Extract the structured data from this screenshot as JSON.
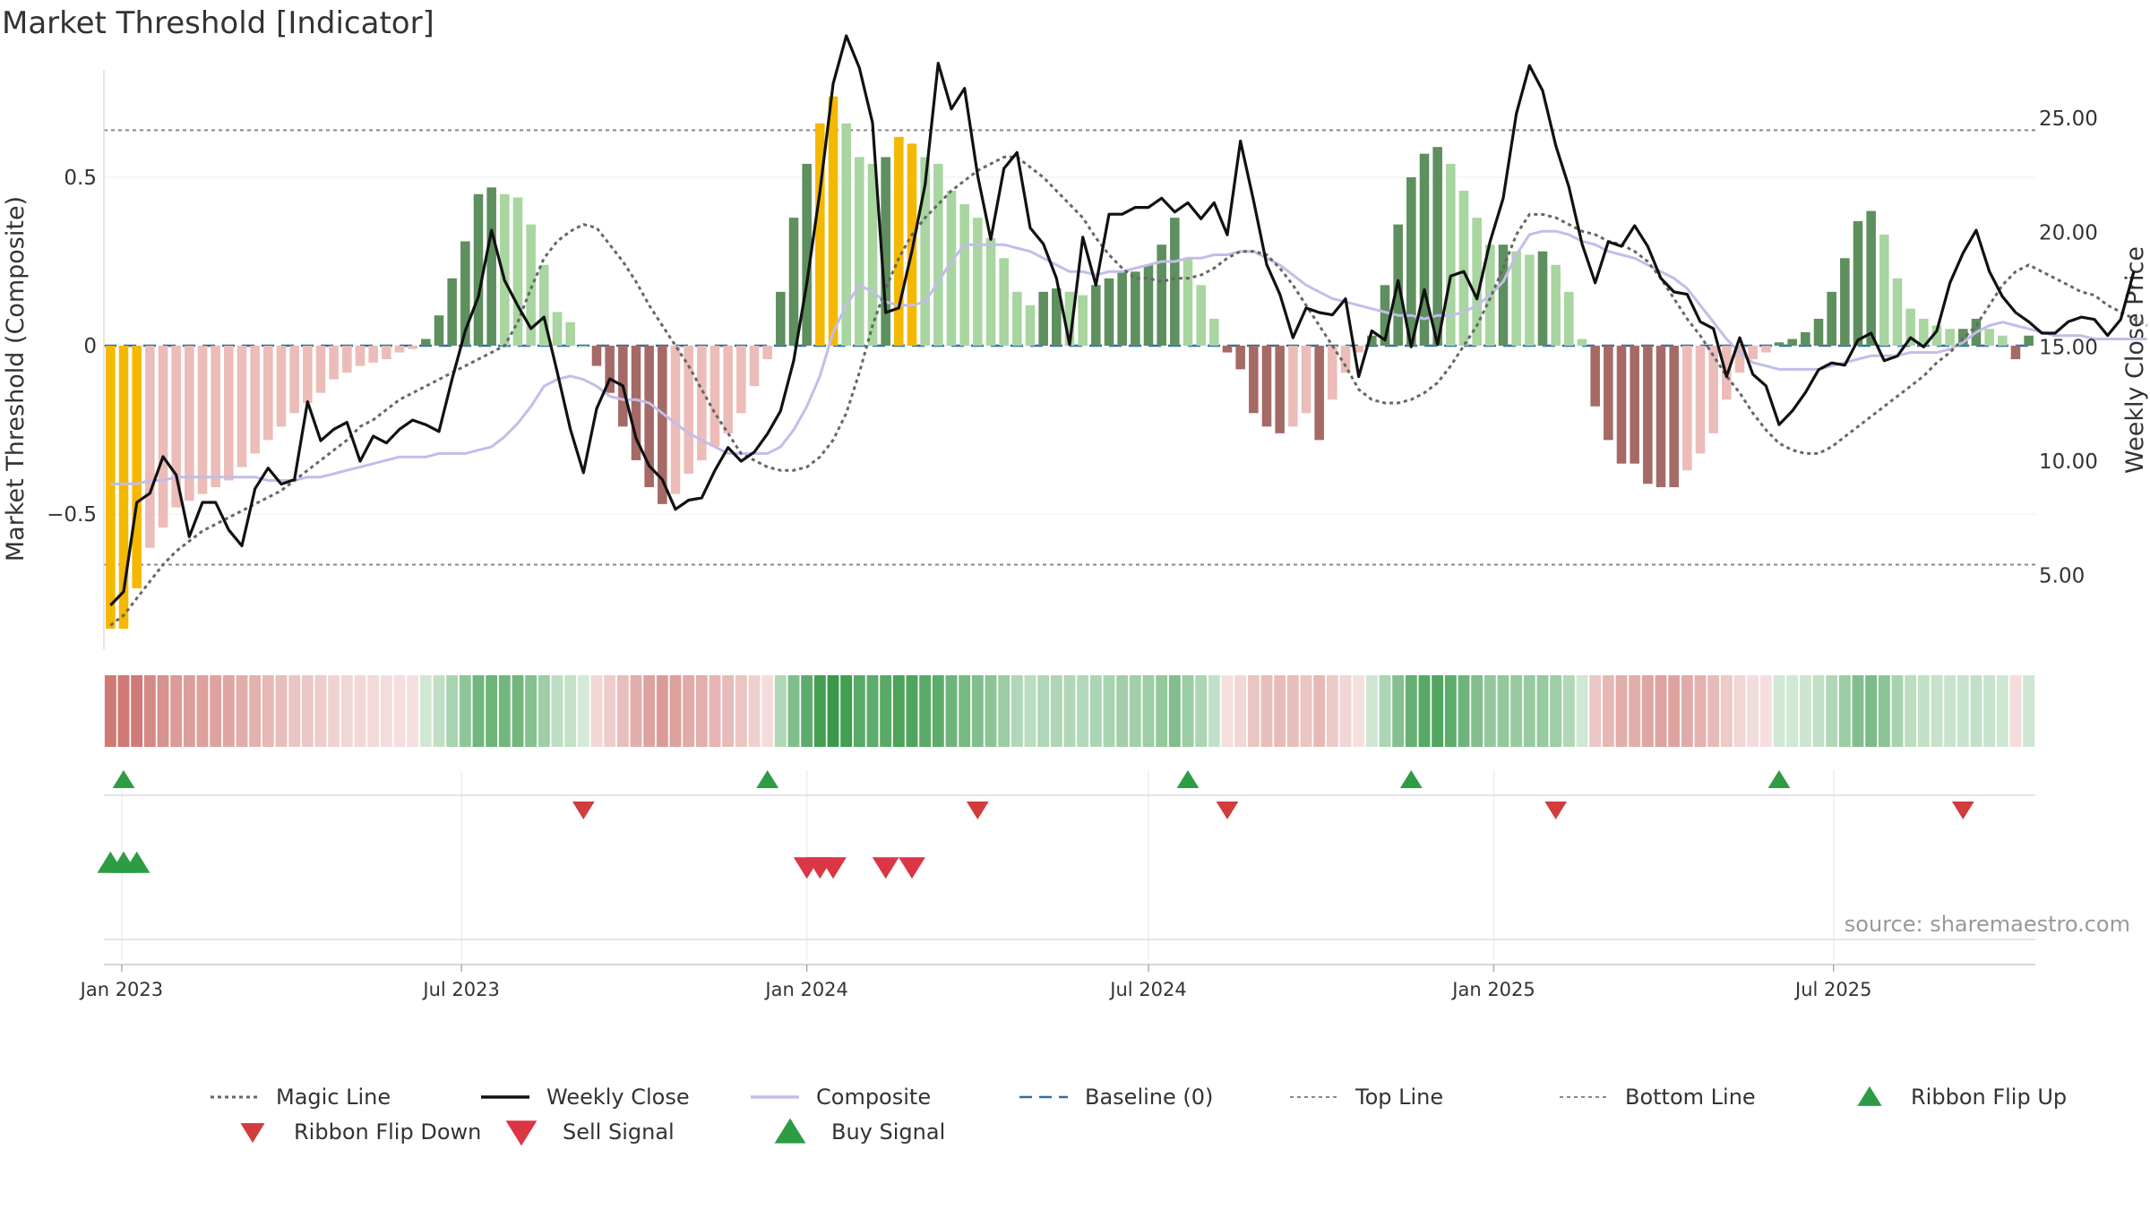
{
  "title": "Market Threshold [Indicator]",
  "source": "source: sharemaestro.com",
  "colors": {
    "bar_green_dark": "#5e8f5e",
    "bar_green_light": "#a8d5a0",
    "bar_red_dark": "#a56a66",
    "bar_red_light": "#ebbcb8",
    "bar_gold": "#f5b800",
    "close": "#111111",
    "composite": "#c2bde8",
    "magic": "#666666",
    "baseline": "#2f6f9f",
    "ref_line": "#888888",
    "signal_up": "#2e9b45",
    "signal_down": "#d13c3c",
    "sell": "#dc3545"
  },
  "chart_data": {
    "type": "bar",
    "ylabel": "Market Threshold (Composite)",
    "y2label": "Weekly Close Price",
    "ylim": [
      -0.84,
      0.92
    ],
    "y2lim": [
      2.68,
      28.6
    ],
    "yticks": [
      0.5,
      0,
      -0.5
    ],
    "yticklabels": [
      "0.5",
      "0",
      "−0.5"
    ],
    "y2ticks": [
      25,
      20,
      15,
      10,
      5
    ],
    "y2ticklabels": [
      "25.00",
      "20.00",
      "15.00",
      "10.00",
      "5.00"
    ],
    "x_start": "2022-12-26",
    "xticks": [
      "2023-01-01",
      "2023-07-01",
      "2024-01-01",
      "2024-07-01",
      "2025-01-01",
      "2025-07-01"
    ],
    "xticklabels": [
      "Jan 2023",
      "Jul 2023",
      "Jan 2024",
      "Jul 2024",
      "Jan 2025",
      "Jul 2025"
    ],
    "top_line": 0.64,
    "bottom_line": -0.65,
    "baseline": 0,
    "composite_bars": [
      -0.84,
      -0.84,
      -0.72,
      -0.6,
      -0.54,
      -0.48,
      -0.46,
      -0.44,
      -0.42,
      -0.4,
      -0.36,
      -0.32,
      -0.28,
      -0.24,
      -0.2,
      -0.17,
      -0.14,
      -0.1,
      -0.08,
      -0.06,
      -0.05,
      -0.04,
      -0.02,
      -0.01,
      0.02,
      0.09,
      0.2,
      0.31,
      0.45,
      0.47,
      0.45,
      0.44,
      0.36,
      0.24,
      0.1,
      0.07,
      0.0,
      -0.06,
      -0.14,
      -0.24,
      -0.34,
      -0.42,
      -0.47,
      -0.44,
      -0.38,
      -0.34,
      -0.3,
      -0.26,
      -0.2,
      -0.12,
      -0.04,
      0.16,
      0.38,
      0.54,
      0.66,
      0.74,
      0.66,
      0.56,
      0.54,
      0.56,
      0.62,
      0.6,
      0.56,
      0.54,
      0.46,
      0.42,
      0.38,
      0.32,
      0.26,
      0.16,
      0.12,
      0.16,
      0.17,
      0.16,
      0.15,
      0.18,
      0.2,
      0.22,
      0.22,
      0.24,
      0.3,
      0.38,
      0.26,
      0.18,
      0.08,
      -0.02,
      -0.07,
      -0.2,
      -0.24,
      -0.26,
      -0.24,
      -0.2,
      -0.28,
      -0.16,
      -0.08,
      -0.02,
      0.03,
      0.18,
      0.36,
      0.5,
      0.57,
      0.59,
      0.54,
      0.46,
      0.38,
      0.3,
      0.3,
      0.28,
      0.27,
      0.28,
      0.24,
      0.16,
      0.02,
      -0.18,
      -0.28,
      -0.35,
      -0.35,
      -0.41,
      -0.42,
      -0.42,
      -0.37,
      -0.32,
      -0.26,
      -0.16,
      -0.08,
      -0.04,
      -0.02,
      0.01,
      0.02,
      0.04,
      0.08,
      0.16,
      0.26,
      0.37,
      0.4,
      0.33,
      0.2,
      0.11,
      0.08,
      0.06,
      0.05,
      0.05,
      0.08,
      0.05,
      0.03,
      -0.04,
      0.03
    ],
    "weekly_close": [
      3.7,
      4.3,
      8.2,
      8.6,
      10.2,
      9.4,
      6.7,
      8.2,
      8.2,
      7.0,
      6.3,
      8.8,
      9.7,
      9.0,
      9.2,
      12.6,
      10.9,
      11.4,
      11.7,
      10.0,
      11.1,
      10.8,
      11.4,
      11.8,
      11.6,
      11.3,
      13.6,
      15.7,
      17.2,
      20.1,
      17.9,
      16.8,
      15.8,
      16.3,
      13.9,
      11.4,
      9.5,
      12.3,
      13.6,
      13.3,
      11.0,
      9.8,
      9.2,
      7.9,
      8.3,
      8.4,
      9.6,
      10.6,
      10.0,
      10.4,
      11.2,
      12.2,
      14.4,
      17.8,
      21.8,
      26.5,
      28.6,
      27.2,
      24.8,
      16.5,
      16.7,
      19.2,
      22.1,
      27.4,
      25.4,
      26.3,
      22.5,
      19.7,
      22.8,
      23.5,
      20.2,
      19.5,
      18.0,
      15.1,
      19.8,
      17.7,
      20.8,
      20.8,
      21.1,
      21.1,
      21.5,
      20.9,
      21.3,
      20.6,
      21.3,
      19.9,
      24.0,
      21.4,
      18.6,
      17.3,
      15.4,
      16.7,
      16.5,
      16.4,
      17.1,
      13.7,
      15.7,
      15.3,
      17.9,
      15.0,
      17.5,
      15.1,
      18.1,
      18.3,
      17.1,
      19.6,
      21.5,
      25.2,
      27.3,
      26.2,
      23.8,
      22.0,
      19.5,
      17.8,
      19.6,
      19.4,
      20.3,
      19.4,
      18.0,
      17.4,
      17.3,
      16.1,
      15.8,
      13.7,
      15.4,
      13.8,
      13.3,
      11.6,
      12.2,
      13.0,
      14.0,
      14.3,
      14.2,
      15.3,
      15.6,
      14.4,
      14.6,
      15.4,
      15.0,
      15.7,
      17.8,
      19.1,
      20.1,
      18.3,
      17.2,
      16.5,
      16.1,
      15.6,
      15.6,
      16.1,
      16.3,
      16.2,
      15.5,
      16.2,
      18.3
    ],
    "composite_line": [
      -0.41,
      -0.41,
      -0.41,
      -0.4,
      -0.4,
      -0.39,
      -0.39,
      -0.39,
      -0.39,
      -0.39,
      -0.39,
      -0.39,
      -0.4,
      -0.4,
      -0.4,
      -0.39,
      -0.39,
      -0.38,
      -0.37,
      -0.36,
      -0.35,
      -0.34,
      -0.33,
      -0.33,
      -0.33,
      -0.32,
      -0.32,
      -0.32,
      -0.31,
      -0.3,
      -0.27,
      -0.23,
      -0.18,
      -0.12,
      -0.1,
      -0.09,
      -0.1,
      -0.12,
      -0.15,
      -0.16,
      -0.16,
      -0.17,
      -0.2,
      -0.23,
      -0.26,
      -0.28,
      -0.3,
      -0.32,
      -0.32,
      -0.32,
      -0.32,
      -0.3,
      -0.25,
      -0.18,
      -0.09,
      0.04,
      0.12,
      0.18,
      0.16,
      0.13,
      0.12,
      0.12,
      0.13,
      0.19,
      0.25,
      0.3,
      0.3,
      0.3,
      0.3,
      0.29,
      0.28,
      0.26,
      0.24,
      0.22,
      0.22,
      0.21,
      0.22,
      0.22,
      0.23,
      0.24,
      0.25,
      0.25,
      0.26,
      0.26,
      0.27,
      0.27,
      0.28,
      0.28,
      0.26,
      0.24,
      0.21,
      0.18,
      0.16,
      0.14,
      0.13,
      0.12,
      0.11,
      0.1,
      0.09,
      0.09,
      0.08,
      0.09,
      0.09,
      0.1,
      0.12,
      0.15,
      0.19,
      0.27,
      0.33,
      0.34,
      0.34,
      0.33,
      0.31,
      0.3,
      0.28,
      0.27,
      0.26,
      0.24,
      0.22,
      0.2,
      0.17,
      0.12,
      0.07,
      0.02,
      -0.02,
      -0.05,
      -0.06,
      -0.07,
      -0.07,
      -0.07,
      -0.07,
      -0.06,
      -0.05,
      -0.04,
      -0.03,
      -0.03,
      -0.03,
      -0.02,
      -0.02,
      -0.02,
      -0.01,
      0.01,
      0.04,
      0.06,
      0.07,
      0.06,
      0.05,
      0.04,
      0.03,
      0.03,
      0.03,
      0.02,
      0.02,
      0.02,
      0.02,
      0.02
    ],
    "magic_line": [
      -0.83,
      -0.8,
      -0.75,
      -0.7,
      -0.65,
      -0.61,
      -0.58,
      -0.55,
      -0.53,
      -0.51,
      -0.49,
      -0.47,
      -0.45,
      -0.43,
      -0.4,
      -0.37,
      -0.34,
      -0.31,
      -0.28,
      -0.24,
      -0.22,
      -0.19,
      -0.16,
      -0.14,
      -0.12,
      -0.1,
      -0.08,
      -0.06,
      -0.04,
      -0.02,
      0.0,
      0.07,
      0.17,
      0.26,
      0.31,
      0.34,
      0.36,
      0.35,
      0.3,
      0.25,
      0.19,
      0.12,
      0.06,
      0.0,
      -0.06,
      -0.13,
      -0.2,
      -0.26,
      -0.32,
      -0.34,
      -0.36,
      -0.37,
      -0.37,
      -0.36,
      -0.33,
      -0.28,
      -0.2,
      -0.08,
      0.06,
      0.17,
      0.26,
      0.33,
      0.38,
      0.42,
      0.46,
      0.49,
      0.52,
      0.54,
      0.56,
      0.56,
      0.53,
      0.5,
      0.46,
      0.42,
      0.38,
      0.32,
      0.27,
      0.23,
      0.2,
      0.2,
      0.19,
      0.2,
      0.2,
      0.21,
      0.23,
      0.26,
      0.28,
      0.28,
      0.27,
      0.23,
      0.18,
      0.12,
      0.06,
      0.0,
      -0.06,
      -0.13,
      -0.16,
      -0.17,
      -0.17,
      -0.16,
      -0.14,
      -0.11,
      -0.06,
      0.0,
      0.06,
      0.14,
      0.23,
      0.33,
      0.39,
      0.39,
      0.38,
      0.36,
      0.34,
      0.33,
      0.31,
      0.3,
      0.28,
      0.25,
      0.2,
      0.14,
      0.08,
      0.03,
      -0.03,
      -0.09,
      -0.14,
      -0.2,
      -0.25,
      -0.29,
      -0.31,
      -0.32,
      -0.32,
      -0.3,
      -0.27,
      -0.24,
      -0.21,
      -0.18,
      -0.15,
      -0.12,
      -0.09,
      -0.05,
      -0.02,
      0.02,
      0.06,
      0.12,
      0.18,
      0.22,
      0.24,
      0.22,
      0.2,
      0.18,
      0.16,
      0.15,
      0.12,
      0.1,
      0.08,
      0.06
    ],
    "ribbon_flip_up_weeks": [
      1,
      50,
      82,
      99,
      127
    ],
    "ribbon_flip_down_weeks": [
      36,
      66,
      85,
      110,
      141
    ],
    "sell_signal_weeks": [
      53,
      54,
      55,
      59,
      61
    ],
    "buy_signal_weeks": [
      0,
      1,
      2
    ],
    "gold_weeks": [
      0,
      1,
      2,
      54,
      55,
      60,
      61
    ],
    "legend": [
      {
        "key": "magic",
        "label": "Magic Line"
      },
      {
        "key": "close",
        "label": "Weekly Close"
      },
      {
        "key": "composite",
        "label": "Composite"
      },
      {
        "key": "baseline",
        "label": "Baseline (0)"
      },
      {
        "key": "top",
        "label": "Top Line"
      },
      {
        "key": "bottom",
        "label": "Bottom Line"
      },
      {
        "key": "flipup",
        "label": "Ribbon Flip Up"
      },
      {
        "key": "flipdown",
        "label": "Ribbon Flip Down"
      },
      {
        "key": "sell",
        "label": "Sell Signal"
      },
      {
        "key": "buy",
        "label": "Buy Signal"
      }
    ],
    "legend_placement": "bottom"
  }
}
